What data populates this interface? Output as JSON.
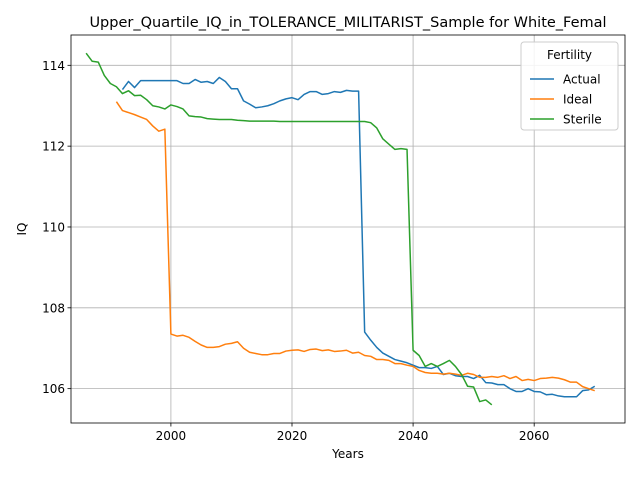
{
  "chart_data": {
    "type": "line",
    "title": "Upper_Quartile_IQ_in_TOLERANCE_MILITARIST_Sample for White_Femal",
    "xlabel": "Years",
    "ylabel": "IQ",
    "xlim": [
      2083.5,
      2095
    ],
    "ylim": [
      105.15,
      114.75
    ],
    "xticks": [
      2000,
      2020,
      2040,
      2060
    ],
    "yticks": [
      106,
      108,
      110,
      112,
      114
    ],
    "grid": true,
    "legend": {
      "title": "Fertility",
      "position": "top-right"
    },
    "series": [
      {
        "name": "Actual",
        "color": "#1f77b4",
        "points": [
          [
            1992,
            113.4
          ],
          [
            1993,
            113.6
          ],
          [
            1994,
            113.45
          ],
          [
            1995,
            113.62
          ],
          [
            1996,
            113.62
          ],
          [
            1997,
            113.62
          ],
          [
            1998,
            113.62
          ],
          [
            1999,
            113.62
          ],
          [
            2000,
            113.62
          ],
          [
            2001,
            113.62
          ],
          [
            2002,
            113.55
          ],
          [
            2003,
            113.55
          ],
          [
            2004,
            113.65
          ],
          [
            2005,
            113.58
          ],
          [
            2006,
            113.6
          ],
          [
            2007,
            113.55
          ],
          [
            2008,
            113.7
          ],
          [
            2009,
            113.6
          ],
          [
            2010,
            113.42
          ],
          [
            2011,
            113.42
          ],
          [
            2012,
            113.12
          ],
          [
            2013,
            113.04
          ],
          [
            2014,
            112.95
          ],
          [
            2015,
            112.97
          ],
          [
            2016,
            113.0
          ],
          [
            2017,
            113.05
          ],
          [
            2018,
            113.12
          ],
          [
            2019,
            113.17
          ],
          [
            2020,
            113.2
          ],
          [
            2021,
            113.15
          ],
          [
            2022,
            113.28
          ],
          [
            2023,
            113.35
          ],
          [
            2024,
            113.35
          ],
          [
            2025,
            113.28
          ],
          [
            2026,
            113.3
          ],
          [
            2027,
            113.35
          ],
          [
            2028,
            113.33
          ],
          [
            2029,
            113.38
          ],
          [
            2030,
            113.36
          ],
          [
            2031,
            113.36
          ],
          [
            2032,
            107.4
          ],
          [
            2033,
            107.2
          ],
          [
            2034,
            107.02
          ],
          [
            2035,
            106.88
          ],
          [
            2036,
            106.8
          ],
          [
            2037,
            106.72
          ],
          [
            2038,
            106.68
          ],
          [
            2039,
            106.64
          ],
          [
            2040,
            106.58
          ],
          [
            2041,
            106.52
          ],
          [
            2042,
            106.52
          ],
          [
            2043,
            106.5
          ],
          [
            2044,
            106.55
          ],
          [
            2045,
            106.35
          ],
          [
            2046,
            106.38
          ],
          [
            2047,
            106.32
          ],
          [
            2048,
            106.3
          ],
          [
            2049,
            106.3
          ],
          [
            2050,
            106.25
          ],
          [
            2051,
            106.33
          ],
          [
            2052,
            106.15
          ],
          [
            2053,
            106.14
          ],
          [
            2054,
            106.1
          ],
          [
            2055,
            106.1
          ],
          [
            2056,
            106.0
          ],
          [
            2057,
            105.93
          ],
          [
            2058,
            105.93
          ],
          [
            2059,
            106.0
          ],
          [
            2060,
            105.93
          ],
          [
            2061,
            105.92
          ],
          [
            2062,
            105.85
          ],
          [
            2063,
            105.86
          ],
          [
            2064,
            105.82
          ],
          [
            2065,
            105.8
          ],
          [
            2066,
            105.8
          ],
          [
            2067,
            105.8
          ],
          [
            2068,
            105.95
          ],
          [
            2069,
            105.97
          ],
          [
            2070,
            106.06
          ]
        ]
      },
      {
        "name": "Ideal",
        "color": "#ff7f0e",
        "points": [
          [
            1991,
            113.1
          ],
          [
            1992,
            112.88
          ],
          [
            1993,
            112.83
          ],
          [
            1994,
            112.78
          ],
          [
            1995,
            112.72
          ],
          [
            1996,
            112.66
          ],
          [
            1997,
            112.5
          ],
          [
            1998,
            112.37
          ],
          [
            1999,
            112.42
          ],
          [
            2000,
            107.35
          ],
          [
            2001,
            107.3
          ],
          [
            2002,
            107.32
          ],
          [
            2003,
            107.27
          ],
          [
            2004,
            107.17
          ],
          [
            2005,
            107.08
          ],
          [
            2006,
            107.02
          ],
          [
            2007,
            107.02
          ],
          [
            2008,
            107.04
          ],
          [
            2009,
            107.1
          ],
          [
            2010,
            107.12
          ],
          [
            2011,
            107.16
          ],
          [
            2012,
            107.0
          ],
          [
            2013,
            106.9
          ],
          [
            2014,
            106.87
          ],
          [
            2015,
            106.84
          ],
          [
            2016,
            106.84
          ],
          [
            2017,
            106.87
          ],
          [
            2018,
            106.87
          ],
          [
            2019,
            106.93
          ],
          [
            2020,
            106.95
          ],
          [
            2021,
            106.96
          ],
          [
            2022,
            106.92
          ],
          [
            2023,
            106.97
          ],
          [
            2024,
            106.98
          ],
          [
            2025,
            106.94
          ],
          [
            2026,
            106.96
          ],
          [
            2027,
            106.92
          ],
          [
            2028,
            106.93
          ],
          [
            2029,
            106.95
          ],
          [
            2030,
            106.88
          ],
          [
            2031,
            106.9
          ],
          [
            2032,
            106.82
          ],
          [
            2033,
            106.8
          ],
          [
            2034,
            106.72
          ],
          [
            2035,
            106.72
          ],
          [
            2036,
            106.7
          ],
          [
            2037,
            106.62
          ],
          [
            2038,
            106.62
          ],
          [
            2039,
            106.58
          ],
          [
            2040,
            106.55
          ],
          [
            2041,
            106.45
          ],
          [
            2042,
            106.4
          ],
          [
            2043,
            106.38
          ],
          [
            2044,
            106.38
          ],
          [
            2045,
            106.36
          ],
          [
            2046,
            106.38
          ],
          [
            2047,
            106.36
          ],
          [
            2048,
            106.33
          ],
          [
            2049,
            106.38
          ],
          [
            2050,
            106.35
          ],
          [
            2051,
            106.28
          ],
          [
            2052,
            106.28
          ],
          [
            2053,
            106.3
          ],
          [
            2054,
            106.28
          ],
          [
            2055,
            106.32
          ],
          [
            2056,
            106.25
          ],
          [
            2057,
            106.3
          ],
          [
            2058,
            106.2
          ],
          [
            2059,
            106.23
          ],
          [
            2060,
            106.2
          ],
          [
            2061,
            106.25
          ],
          [
            2062,
            106.26
          ],
          [
            2063,
            106.28
          ],
          [
            2064,
            106.26
          ],
          [
            2065,
            106.22
          ],
          [
            2066,
            106.16
          ],
          [
            2067,
            106.16
          ],
          [
            2068,
            106.05
          ],
          [
            2069,
            106.0
          ],
          [
            2070,
            105.95
          ]
        ]
      },
      {
        "name": "Sterile",
        "color": "#2ca02c",
        "points": [
          [
            1986,
            114.3
          ],
          [
            1987,
            114.1
          ],
          [
            1988,
            114.08
          ],
          [
            1989,
            113.75
          ],
          [
            1990,
            113.55
          ],
          [
            1991,
            113.47
          ],
          [
            1992,
            113.3
          ],
          [
            1993,
            113.37
          ],
          [
            1994,
            113.25
          ],
          [
            1995,
            113.26
          ],
          [
            1996,
            113.15
          ],
          [
            1997,
            113.0
          ],
          [
            1998,
            112.97
          ],
          [
            1999,
            112.92
          ],
          [
            2000,
            113.02
          ],
          [
            2001,
            112.98
          ],
          [
            2002,
            112.92
          ],
          [
            2003,
            112.75
          ],
          [
            2004,
            112.73
          ],
          [
            2005,
            112.72
          ],
          [
            2006,
            112.68
          ],
          [
            2007,
            112.67
          ],
          [
            2008,
            112.66
          ],
          [
            2009,
            112.66
          ],
          [
            2010,
            112.66
          ],
          [
            2011,
            112.64
          ],
          [
            2012,
            112.63
          ],
          [
            2013,
            112.62
          ],
          [
            2014,
            112.62
          ],
          [
            2015,
            112.62
          ],
          [
            2016,
            112.62
          ],
          [
            2017,
            112.62
          ],
          [
            2018,
            112.61
          ],
          [
            2019,
            112.61
          ],
          [
            2020,
            112.61
          ],
          [
            2021,
            112.61
          ],
          [
            2022,
            112.61
          ],
          [
            2023,
            112.61
          ],
          [
            2024,
            112.61
          ],
          [
            2025,
            112.61
          ],
          [
            2026,
            112.61
          ],
          [
            2027,
            112.61
          ],
          [
            2028,
            112.61
          ],
          [
            2029,
            112.61
          ],
          [
            2030,
            112.61
          ],
          [
            2031,
            112.61
          ],
          [
            2032,
            112.61
          ],
          [
            2033,
            112.58
          ],
          [
            2034,
            112.45
          ],
          [
            2035,
            112.18
          ],
          [
            2036,
            112.05
          ],
          [
            2037,
            111.92
          ],
          [
            2038,
            111.94
          ],
          [
            2039,
            111.92
          ],
          [
            2040,
            106.95
          ],
          [
            2041,
            106.82
          ],
          [
            2042,
            106.55
          ],
          [
            2043,
            106.62
          ],
          [
            2044,
            106.55
          ],
          [
            2045,
            106.62
          ],
          [
            2046,
            106.7
          ],
          [
            2047,
            106.55
          ],
          [
            2048,
            106.35
          ],
          [
            2049,
            106.06
          ],
          [
            2050,
            106.04
          ],
          [
            2051,
            105.68
          ],
          [
            2052,
            105.72
          ],
          [
            2053,
            105.6
          ]
        ]
      }
    ]
  }
}
